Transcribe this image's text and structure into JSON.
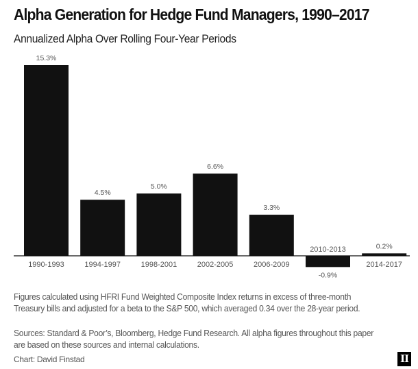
{
  "chart_data": {
    "type": "bar",
    "title": "Alpha Generation for Hedge Fund Managers, 1990–2017",
    "subtitle": "Annualized Alpha Over Rolling Four-Year Periods",
    "categories": [
      "1990-1993",
      "1994-1997",
      "1998-2001",
      "2002-2005",
      "2006-2009",
      "2010-2013",
      "2014-2017"
    ],
    "values": [
      15.3,
      4.5,
      5.0,
      6.6,
      3.3,
      -0.9,
      0.2
    ],
    "value_labels": [
      "15.3%",
      "4.5%",
      "5.0%",
      "6.6%",
      "3.3%",
      "-0.9%",
      "0.2%"
    ],
    "xlabel": "",
    "ylabel": "",
    "ylim": [
      -0.9,
      15.3
    ],
    "grid": false,
    "bar_color": "#111111"
  },
  "notes": {
    "footnote": "Figures calculated using HFRI Fund Weighted Composite Index returns in excess of three-month Treasury bills and adjusted for a beta to the S&P 500, which averaged 0.34 over the 28-year period.",
    "sources": "Sources: Standard & Poor’s, Bloomberg, Hedge Fund Research. All alpha figures throughout this paper are based on these sources and internal calculations.",
    "credit": "Chart: David Finstad",
    "logo": "II"
  }
}
